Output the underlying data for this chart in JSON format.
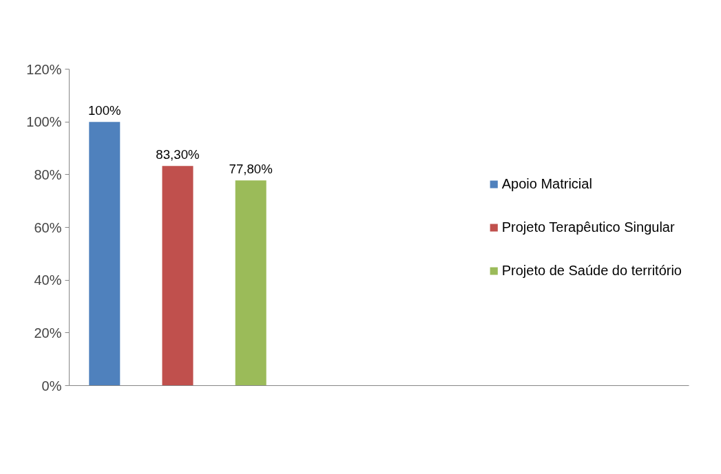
{
  "chart_data": {
    "type": "bar",
    "categories": [
      null
    ],
    "series": [
      {
        "name": "Apoio Matricial",
        "color": "#4f81bd",
        "values": [
          100
        ],
        "value_labels": [
          "100%"
        ]
      },
      {
        "name": "Projeto Terapêutico Singular",
        "color": "#c0504d",
        "values": [
          83.3
        ],
        "value_labels": [
          "83,30%"
        ]
      },
      {
        "name": "Projeto de Saúde do território",
        "color": "#9bbb59",
        "values": [
          77.8
        ],
        "value_labels": [
          "77,80%"
        ]
      }
    ],
    "ylim": [
      0,
      120
    ],
    "yticks": [
      {
        "value": 0,
        "label": "0%"
      },
      {
        "value": 20,
        "label": "20%"
      },
      {
        "value": 40,
        "label": "40%"
      },
      {
        "value": 60,
        "label": "60%"
      },
      {
        "value": 80,
        "label": "80%"
      },
      {
        "value": 100,
        "label": "100%"
      },
      {
        "value": 120,
        "label": "120%"
      }
    ],
    "tick_labels": "y",
    "grid": false,
    "legend": "right"
  }
}
